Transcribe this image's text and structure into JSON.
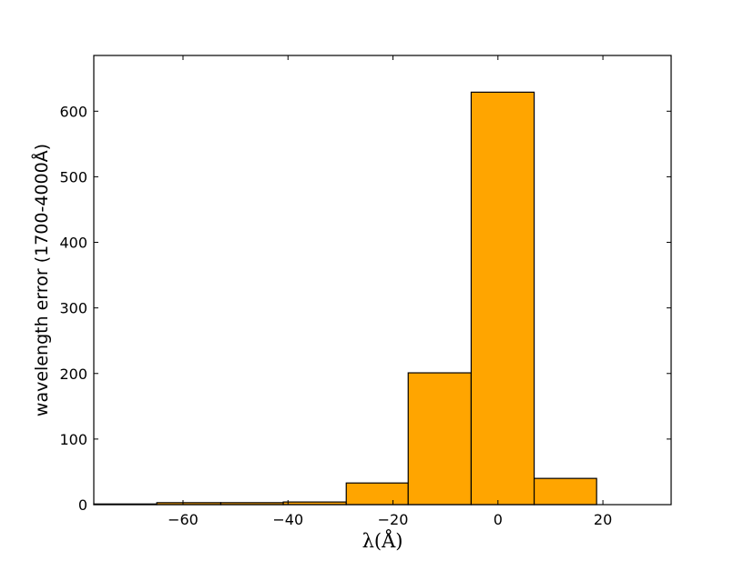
{
  "chart_data": {
    "type": "bar",
    "title": "",
    "xlabel": "λ(Å)",
    "ylabel": "wavelength error (1700-4000Å)",
    "xlim": [
      -77,
      33
    ],
    "ylim": [
      0,
      685
    ],
    "xticks": [
      -60,
      -40,
      -20,
      0,
      20
    ],
    "xtick_labels": [
      "−60",
      "−40",
      "−20",
      "0",
      "20"
    ],
    "yticks": [
      0,
      100,
      200,
      300,
      400,
      500,
      600
    ],
    "ytick_labels": [
      "0",
      "100",
      "200",
      "300",
      "400",
      "500",
      "600"
    ],
    "grid": false,
    "bar_color": "#ffa500",
    "edge_color": "#000000",
    "bins": [
      {
        "x0": -77.0,
        "x1": -65.0,
        "value": 1
      },
      {
        "x0": -65.0,
        "x1": -52.8,
        "value": 3
      },
      {
        "x0": -52.8,
        "x1": -40.9,
        "value": 3
      },
      {
        "x0": -40.9,
        "x1": -28.9,
        "value": 4
      },
      {
        "x0": -28.9,
        "x1": -17.1,
        "value": 33
      },
      {
        "x0": -17.1,
        "x1": -5.1,
        "value": 201
      },
      {
        "x0": -5.1,
        "x1": 6.9,
        "value": 629
      },
      {
        "x0": 6.9,
        "x1": 18.8,
        "value": 40
      }
    ]
  }
}
